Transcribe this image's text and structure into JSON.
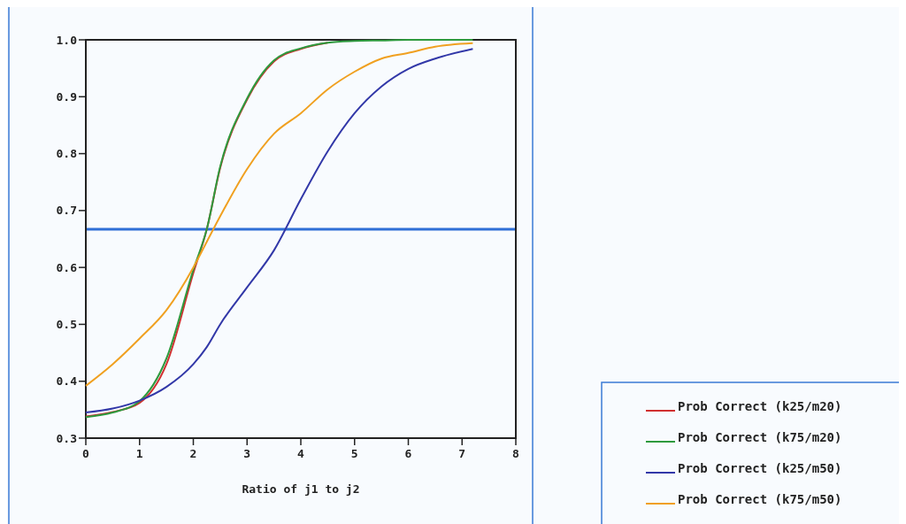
{
  "chart_data": {
    "type": "line",
    "xlabel": "Ratio of j1 to j2",
    "xlim": [
      0,
      8
    ],
    "xticks": [
      0,
      1,
      2,
      3,
      4,
      5,
      6,
      7,
      8
    ],
    "ylim": [
      0.3,
      1.0
    ],
    "yticks": [
      {
        "value": 0.3,
        "label": "0.3"
      },
      {
        "value": 0.4,
        "label": "0.4"
      },
      {
        "value": 0.5,
        "label": "0.5"
      },
      {
        "value": 0.6,
        "label": "0.6"
      },
      {
        "value": 0.7,
        "label": "0.7"
      },
      {
        "value": 0.8,
        "label": "0.8"
      },
      {
        "value": 0.9,
        "label": "0.9"
      },
      {
        "value": 1.0,
        "label": "1.0"
      }
    ],
    "grid": false,
    "legend": "bottom right",
    "marker": "none",
    "line_style": "solid",
    "x": [
      0,
      0.5,
      1,
      1.5,
      2,
      2.25,
      2.5,
      3,
      3.5,
      4,
      4.5,
      5,
      5.5,
      6,
      6.5,
      7.2
    ],
    "series": [
      {
        "name": "Prob Correct (k25/m20)",
        "color": "#d03030",
        "values": [
          0.338,
          0.346,
          0.362,
          0.43,
          0.59,
          0.667,
          0.775,
          0.895,
          0.962,
          0.984,
          0.995,
          null,
          null,
          null,
          null,
          null
        ]
      },
      {
        "name": "Prob Correct (k75/m20)",
        "color": "#2e9a3e",
        "values": [
          0.337,
          0.345,
          0.365,
          0.44,
          0.596,
          0.667,
          0.777,
          0.897,
          0.964,
          0.985,
          0.995,
          0.998,
          0.999,
          1.0,
          1.0,
          1.0
        ]
      },
      {
        "name": "Prob Correct (k25/m50)",
        "color": "#3238a8",
        "values": [
          0.345,
          0.352,
          0.366,
          0.39,
          0.43,
          0.46,
          0.5,
          0.565,
          0.63,
          0.72,
          0.804,
          0.871,
          0.918,
          0.949,
          0.967,
          0.984
        ]
      },
      {
        "name": "Prob Correct (k75/m50)",
        "color": "#f0a020",
        "values": [
          0.392,
          0.43,
          0.475,
          0.525,
          0.6,
          0.645,
          0.69,
          0.773,
          0.835,
          0.871,
          0.913,
          0.944,
          0.967,
          0.977,
          0.988,
          0.994
        ]
      }
    ],
    "ref_lines": [
      {
        "axis": "y",
        "value": 0.667,
        "color": "#2f6fd6"
      }
    ]
  }
}
